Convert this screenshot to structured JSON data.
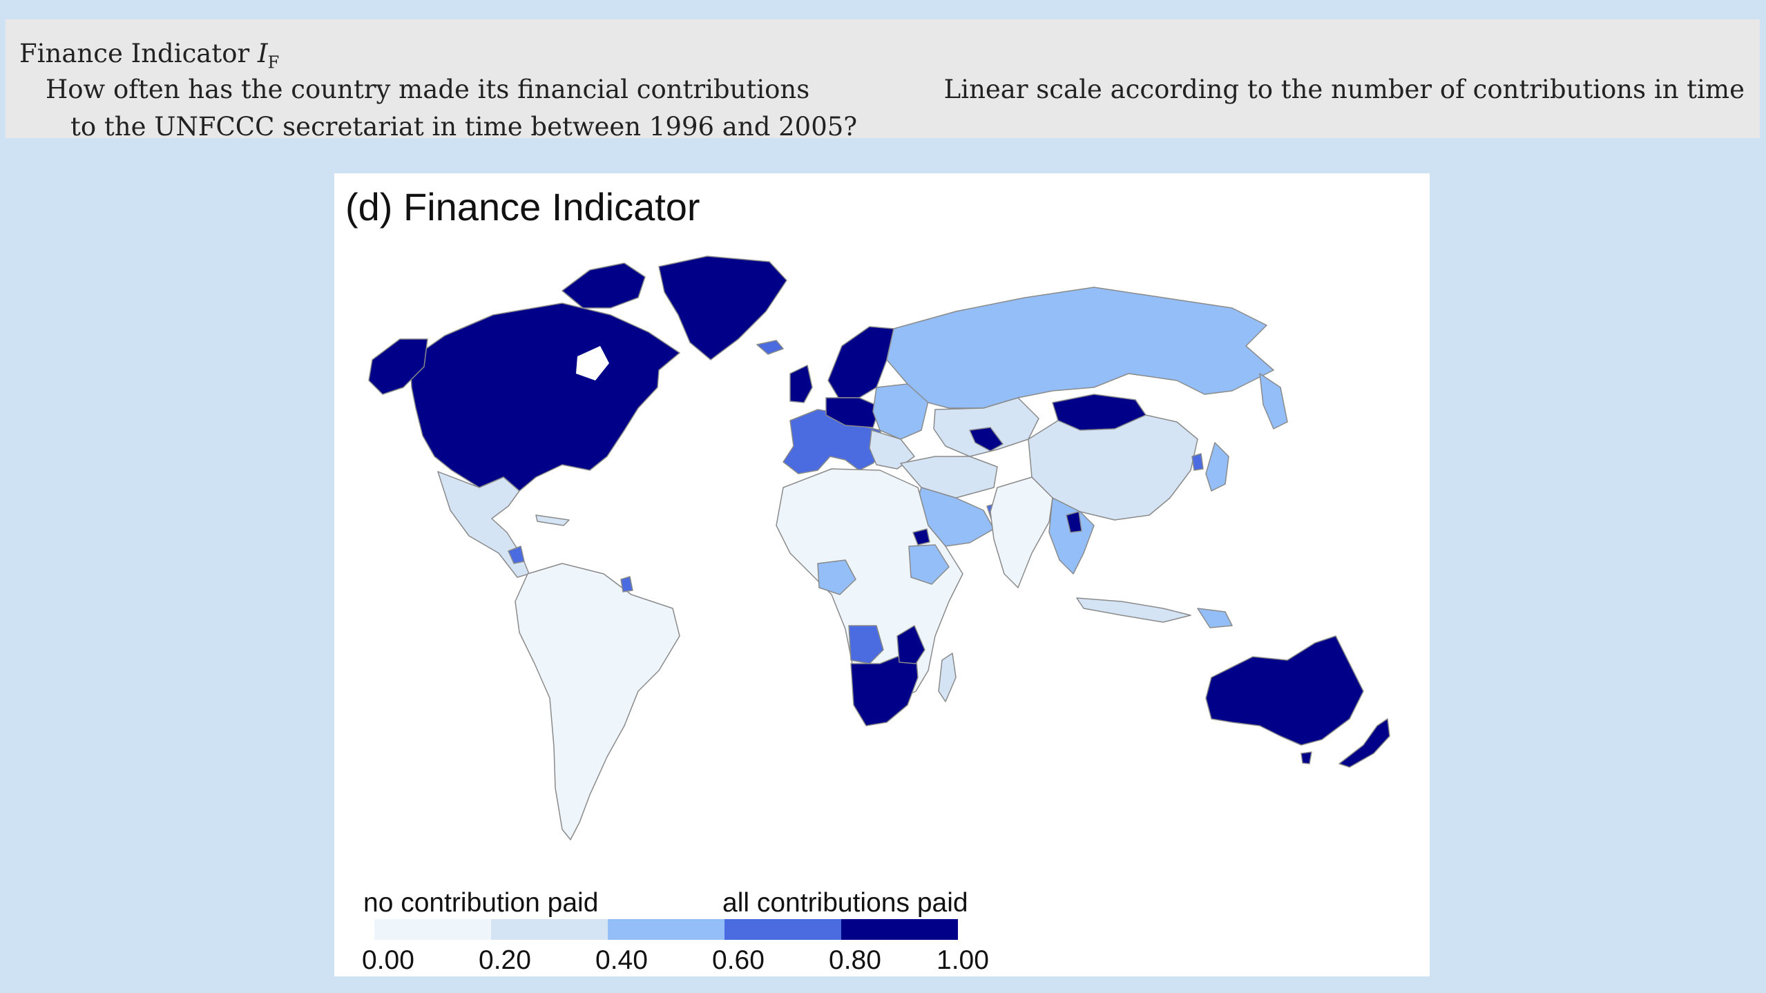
{
  "header": {
    "title_prefix": "Finance Indicator ",
    "title_symbol": "I",
    "title_subscript": "F",
    "question_line1": "How often has the country made its financial contributions",
    "question_line2": "to the UNFCCC secretariat in time between 1996 and 2005?",
    "scale_description": "Linear scale according to the number of contributions in time"
  },
  "figure": {
    "title": "(d) Finance Indicator",
    "legend": {
      "low_label": "no contribution paid",
      "high_label": "all contributions paid",
      "ticks": [
        "0.00",
        "0.20",
        "0.40",
        "0.60",
        "0.80",
        "1.00"
      ],
      "colors": [
        "#eef5fb",
        "#d4e4f5",
        "#94bef8",
        "#4a6ce0",
        "#000088"
      ]
    },
    "colors": {
      "ocean": "#ffffff",
      "border": "#8a8a8a"
    },
    "regions": [
      {
        "name": "North America",
        "value": 1.0,
        "color": "#000088"
      },
      {
        "name": "Greenland",
        "value": 1.0,
        "color": "#000088"
      },
      {
        "name": "Central America",
        "value": 0.2,
        "color": "#d4e4f5"
      },
      {
        "name": "South America",
        "value": 0.1,
        "color": "#eef5fb"
      },
      {
        "name": "Western Europe",
        "value": 0.7,
        "color": "#4a6ce0"
      },
      {
        "name": "Northern Europe",
        "value": 1.0,
        "color": "#000088"
      },
      {
        "name": "Russia",
        "value": 0.5,
        "color": "#94bef8"
      },
      {
        "name": "Mongolia",
        "value": 1.0,
        "color": "#000088"
      },
      {
        "name": "China",
        "value": 0.3,
        "color": "#d4e4f5"
      },
      {
        "name": "Middle East",
        "value": 0.4,
        "color": "#94bef8"
      },
      {
        "name": "Africa",
        "value": 0.1,
        "color": "#eef5fb"
      },
      {
        "name": "Angola",
        "value": 0.7,
        "color": "#4a6ce0"
      },
      {
        "name": "Southern Africa",
        "value": 1.0,
        "color": "#000088"
      },
      {
        "name": "Australia",
        "value": 1.0,
        "color": "#000088"
      },
      {
        "name": "New Zealand",
        "value": 1.0,
        "color": "#000088"
      }
    ]
  }
}
